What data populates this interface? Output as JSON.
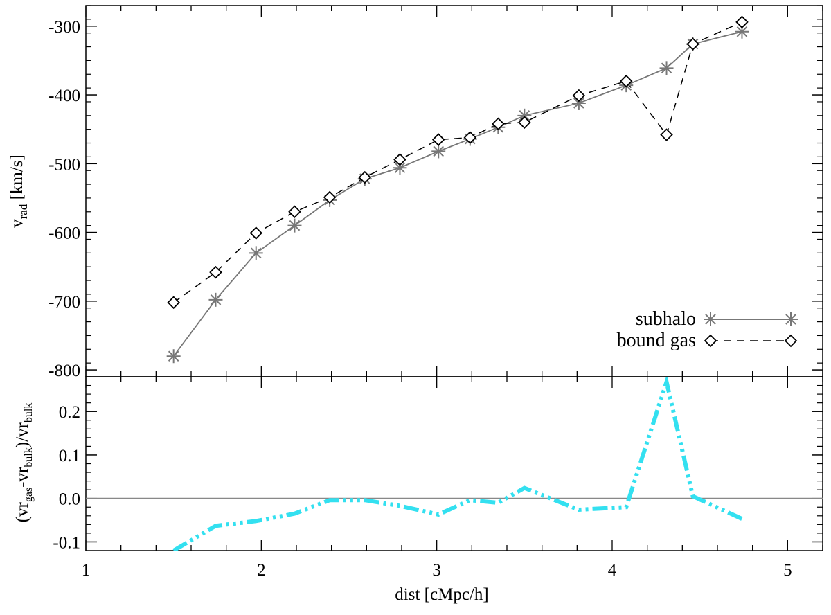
{
  "chart_data": [
    {
      "type": "line",
      "panel": "top",
      "xlim": [
        1,
        5.2
      ],
      "ylim": [
        -810,
        -270
      ],
      "ylabel_main": "v",
      "ylabel_sub": "rad",
      "ylabel_unit": " [km/s]",
      "yticks": [
        -800,
        -700,
        -600,
        -500,
        -400,
        -300
      ],
      "ytick_labels": [
        "-800",
        "-700",
        "-600",
        "-500",
        "-400",
        "-300"
      ],
      "series": [
        {
          "name": "subhalo",
          "color": "#777777",
          "marker": "asterisk",
          "x": [
            1.5,
            1.74,
            1.97,
            2.19,
            2.39,
            2.59,
            2.79,
            3.01,
            3.19,
            3.35,
            3.5,
            3.81,
            4.08,
            4.31,
            4.46,
            4.74
          ],
          "y": [
            -780,
            -698,
            -630,
            -590,
            -553,
            -522,
            -506,
            -482,
            -464,
            -447,
            -430,
            -412,
            -386,
            -361,
            -326,
            -308
          ]
        },
        {
          "name": "bound gas",
          "color": "#000000",
          "marker": "diamond",
          "x": [
            1.5,
            1.74,
            1.97,
            2.19,
            2.39,
            2.59,
            2.79,
            3.01,
            3.19,
            3.35,
            3.5,
            3.81,
            4.08,
            4.31,
            4.46,
            4.74
          ],
          "y": [
            -702,
            -658,
            -601,
            -570,
            -549,
            -520,
            -494,
            -465,
            -462,
            -442,
            -440,
            -401,
            -380,
            -458,
            -326,
            -294
          ]
        }
      ],
      "legend": {
        "placement": "bottom-right",
        "entries": [
          "subhalo",
          "bound gas"
        ]
      }
    },
    {
      "type": "line",
      "panel": "bottom",
      "xlim": [
        1,
        5.2
      ],
      "ylim": [
        -0.12,
        0.28
      ],
      "xlabel": "dist [cMpc/h]",
      "ylabel_parts": {
        "open": "(vr",
        "gas_sub": "gas",
        "minus": "-vr",
        "bulk_sub": "bulk",
        "close": ")/vr",
        "bulk_sub2": "bulk"
      },
      "xticks": [
        1,
        2,
        3,
        4,
        5
      ],
      "xtick_labels": [
        "1",
        "2",
        "3",
        "4",
        "5"
      ],
      "yticks": [
        -0.1,
        0.0,
        0.1,
        0.2
      ],
      "ytick_labels": [
        "-0.1",
        "0.0",
        "0.1",
        "0.2"
      ],
      "reference_line": {
        "y": 0.0,
        "color": "#888888"
      },
      "series": [
        {
          "color": "#33e0f0",
          "style": "dash-dot-dot-dot",
          "x": [
            1.5,
            1.74,
            1.97,
            2.19,
            2.39,
            2.59,
            2.79,
            3.01,
            3.19,
            3.35,
            3.5,
            3.81,
            4.08,
            4.31,
            4.46,
            4.74
          ],
          "y": [
            -0.12,
            -0.063,
            -0.052,
            -0.035,
            -0.004,
            -0.004,
            -0.017,
            -0.037,
            -0.004,
            -0.01,
            0.024,
            -0.026,
            -0.02,
            0.268,
            0.005,
            -0.047
          ]
        }
      ]
    }
  ]
}
